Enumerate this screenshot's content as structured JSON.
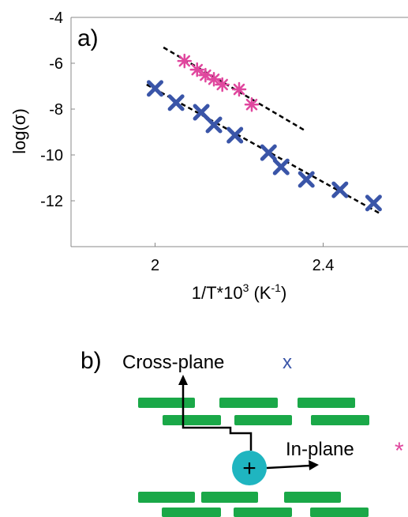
{
  "chart_data": {
    "type": "scatter",
    "panel_label": "a)",
    "ylabel": "log(σ)",
    "xlabel": {
      "base": "1/T*10",
      "sup1": "3",
      "mid": " (K",
      "sup2": "-1",
      "end": ")"
    },
    "xlim": [
      1.8,
      2.6
    ],
    "xticks": [
      2,
      2.4
    ],
    "ylim": [
      -14,
      -4
    ],
    "yticks": [
      -4,
      -6,
      -8,
      -10,
      -12
    ],
    "series": [
      {
        "marker": "x",
        "color": "#3a55a8",
        "x": [
          2.0,
          2.05,
          2.11,
          2.14,
          2.19,
          2.27,
          2.3,
          2.36,
          2.44,
          2.52
        ],
        "values": [
          -7.1,
          -7.72,
          -8.14,
          -8.69,
          -9.14,
          -9.9,
          -10.52,
          -11.07,
          -11.52,
          -12.1
        ]
      },
      {
        "marker": "asterisk",
        "color": "#e0479e",
        "x": [
          2.07,
          2.1,
          2.12,
          2.14,
          2.16,
          2.2,
          2.23
        ],
        "values": [
          -5.9,
          -6.28,
          -6.52,
          -6.7,
          -6.93,
          -7.14,
          -7.8
        ]
      }
    ],
    "fit_lines": [
      {
        "x": [
          1.98,
          2.535
        ],
        "values": [
          -6.93,
          -12.55
        ]
      },
      {
        "x": [
          2.02,
          2.36
        ],
        "values": [
          -5.31,
          -8.97
        ]
      }
    ]
  },
  "diagram": {
    "panel_label": "b)",
    "cross_plane": "Cross-plane",
    "cross_marker": "x",
    "in_plane": "In-plane",
    "in_marker": "*",
    "charge": "+"
  }
}
